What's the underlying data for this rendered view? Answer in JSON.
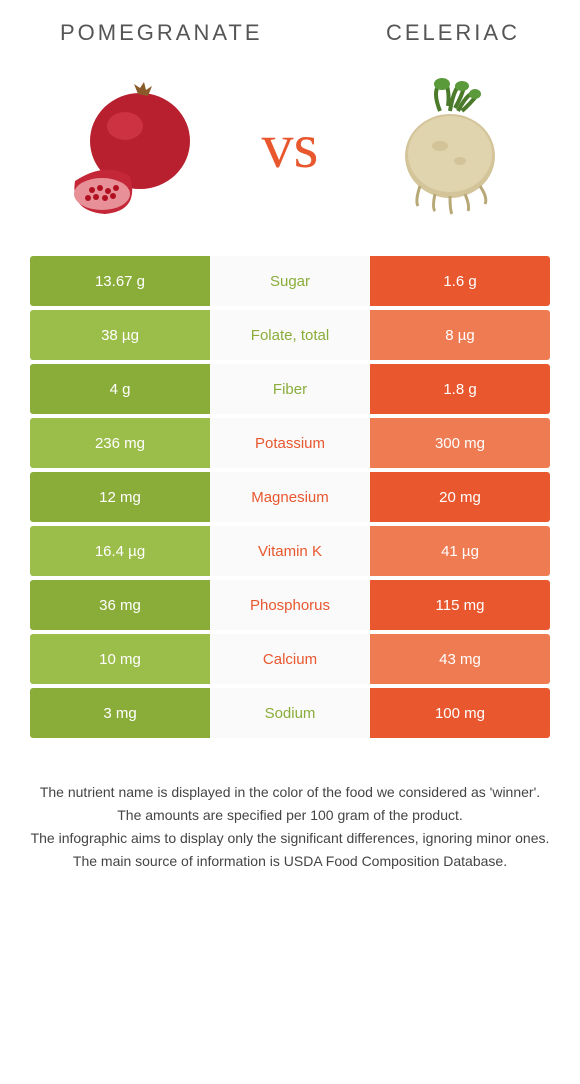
{
  "header": {
    "left_title": "POMEGRANATE",
    "right_title": "CELERIAC",
    "vs": "vs"
  },
  "colors": {
    "left_dark": "#8aad3a",
    "left_light": "#9bbd4a",
    "right_dark": "#e8572e",
    "right_light": "#ef7b52",
    "left_text": "#8aad3a",
    "right_text": "#e8572e"
  },
  "rows": [
    {
      "left": "13.67 g",
      "mid": "Sugar",
      "right": "1.6 g",
      "winner": "left"
    },
    {
      "left": "38 µg",
      "mid": "Folate, total",
      "right": "8 µg",
      "winner": "left"
    },
    {
      "left": "4 g",
      "mid": "Fiber",
      "right": "1.8 g",
      "winner": "left"
    },
    {
      "left": "236 mg",
      "mid": "Potassium",
      "right": "300 mg",
      "winner": "right"
    },
    {
      "left": "12 mg",
      "mid": "Magnesium",
      "right": "20 mg",
      "winner": "right"
    },
    {
      "left": "16.4 µg",
      "mid": "Vitamin K",
      "right": "41 µg",
      "winner": "right"
    },
    {
      "left": "36 mg",
      "mid": "Phosphorus",
      "right": "115 mg",
      "winner": "right"
    },
    {
      "left": "10 mg",
      "mid": "Calcium",
      "right": "43 mg",
      "winner": "right"
    },
    {
      "left": "3 mg",
      "mid": "Sodium",
      "right": "100 mg",
      "winner": "left"
    }
  ],
  "footer": {
    "line1": "The nutrient name is displayed in the color of the food we considered as 'winner'.",
    "line2": "The amounts are specified per 100 gram of the product.",
    "line3": "The infographic aims to display only the significant differences, ignoring minor ones.",
    "line4": "The main source of information is USDA Food Composition Database."
  }
}
